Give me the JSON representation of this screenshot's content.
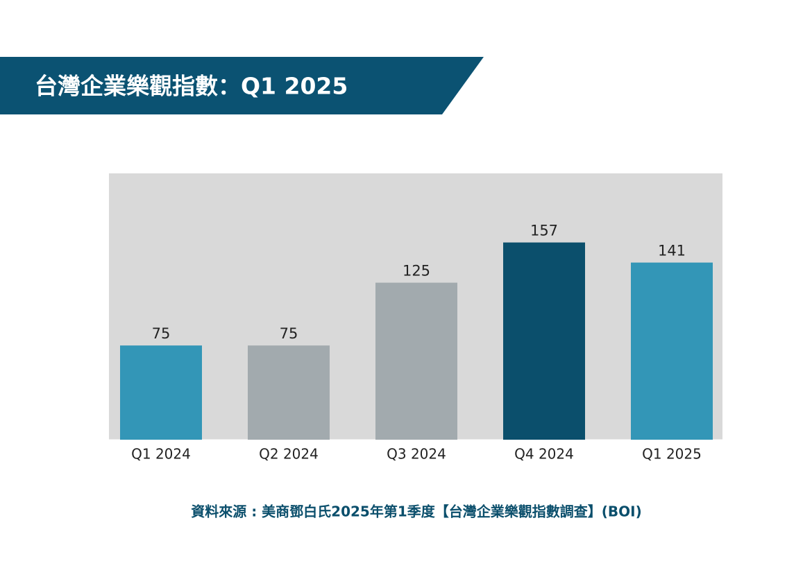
{
  "chart_data": {
    "type": "bar",
    "title": "台灣企業樂觀指數：Q1 2025",
    "categories": [
      "Q1 2024",
      "Q2 2024",
      "Q3 2024",
      "Q4 2024",
      "Q1 2025"
    ],
    "values": [
      75,
      75,
      125,
      157,
      141
    ],
    "colors": [
      "#3396b7",
      "#a2aaae",
      "#a2aaae",
      "#0b4f6c",
      "#3396b7"
    ],
    "ylim": [
      0,
      212
    ],
    "source": "資料來源 : 美商鄧白氏2025年第1季度【台灣企業樂觀指數調查】(BOI)"
  }
}
